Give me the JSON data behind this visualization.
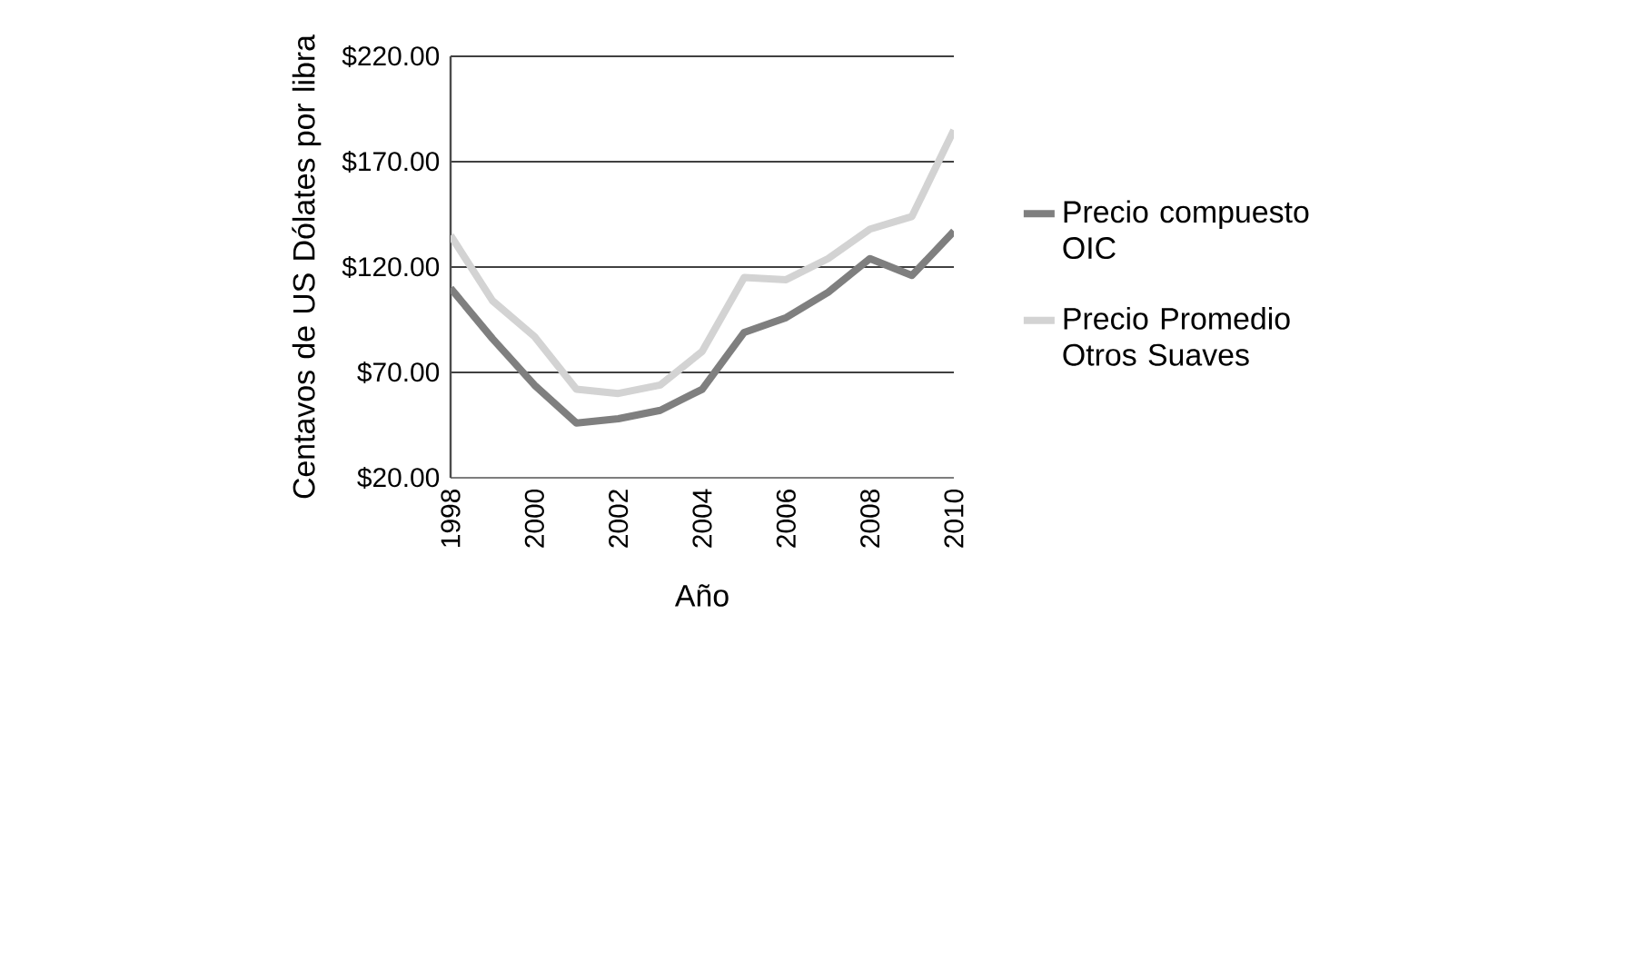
{
  "chart_data": {
    "type": "line",
    "xlabel": "Año",
    "ylabel": "Centavos de US Dólates por libra",
    "x": [
      1998,
      1999,
      2000,
      2001,
      2002,
      2003,
      2004,
      2005,
      2006,
      2007,
      2008,
      2009,
      2010
    ],
    "xlim": [
      1998,
      2010
    ],
    "xticks": [
      1998,
      2000,
      2002,
      2004,
      2006,
      2008,
      2010
    ],
    "ylim": [
      20,
      220
    ],
    "yticks": [
      {
        "value": 20,
        "label": "$20.00"
      },
      {
        "value": 70,
        "label": "$70.00"
      },
      {
        "value": 120,
        "label": "$120.00"
      },
      {
        "value": 170,
        "label": "$170.00"
      },
      {
        "value": 220,
        "label": "$220.00"
      }
    ],
    "grid": "y",
    "legend": "right",
    "marker": "none",
    "line_style": "solid",
    "series": [
      {
        "name": "Precio compuesto OIC",
        "color": "#7f7f7f",
        "values": [
          110,
          86,
          64,
          46,
          48,
          52,
          62,
          89,
          96,
          108,
          124,
          116,
          137
        ]
      },
      {
        "name": "Precio Promedio Otros Suaves",
        "color": "#d3d3d3",
        "values": [
          135,
          104,
          87,
          62,
          60,
          64,
          80,
          115,
          114,
          124,
          138,
          144,
          185
        ]
      }
    ]
  }
}
